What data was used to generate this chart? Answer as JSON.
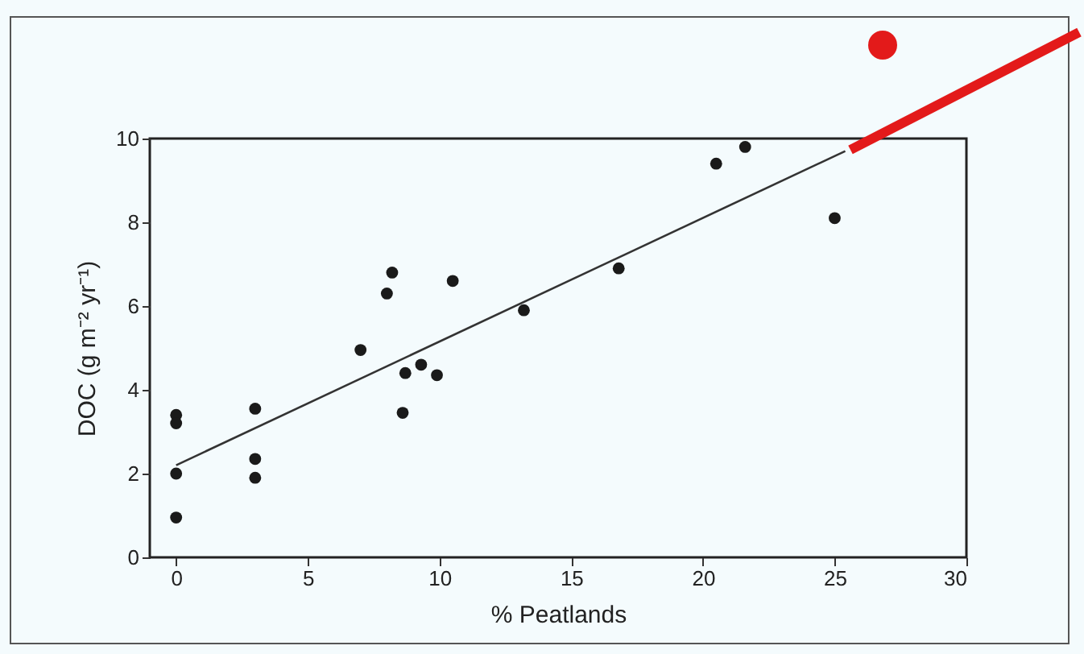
{
  "chart_data": {
    "type": "scatter",
    "xlabel": "% Peatlands",
    "ylabel": "DOC (g m⁻² yr⁻¹)",
    "xlim": [
      -1,
      30
    ],
    "ylim": [
      0,
      10
    ],
    "xticks": [
      0,
      5,
      10,
      15,
      20,
      25,
      30
    ],
    "yticks": [
      0,
      2,
      4,
      6,
      8,
      10
    ],
    "grid": false,
    "series": [
      {
        "marker": "circle",
        "color": "#1a1a1a",
        "x": [
          0,
          0,
          0,
          0,
          3,
          3,
          3,
          7,
          8,
          8.2,
          8.7,
          8.6,
          9.3,
          9.9,
          10.5,
          13.2,
          16.8,
          20.5,
          21.6,
          25
        ],
        "values": [
          3.4,
          3.2,
          2,
          0.95,
          3.55,
          2.35,
          1.9,
          4.95,
          6.3,
          6.8,
          4.4,
          3.45,
          4.6,
          4.35,
          6.6,
          5.9,
          6.9,
          9.4,
          9.8,
          8.1
        ]
      },
      {
        "type": "line",
        "color": "#333333",
        "x": [
          0,
          25.4
        ],
        "values": [
          2.2,
          9.7
        ]
      }
    ]
  }
}
